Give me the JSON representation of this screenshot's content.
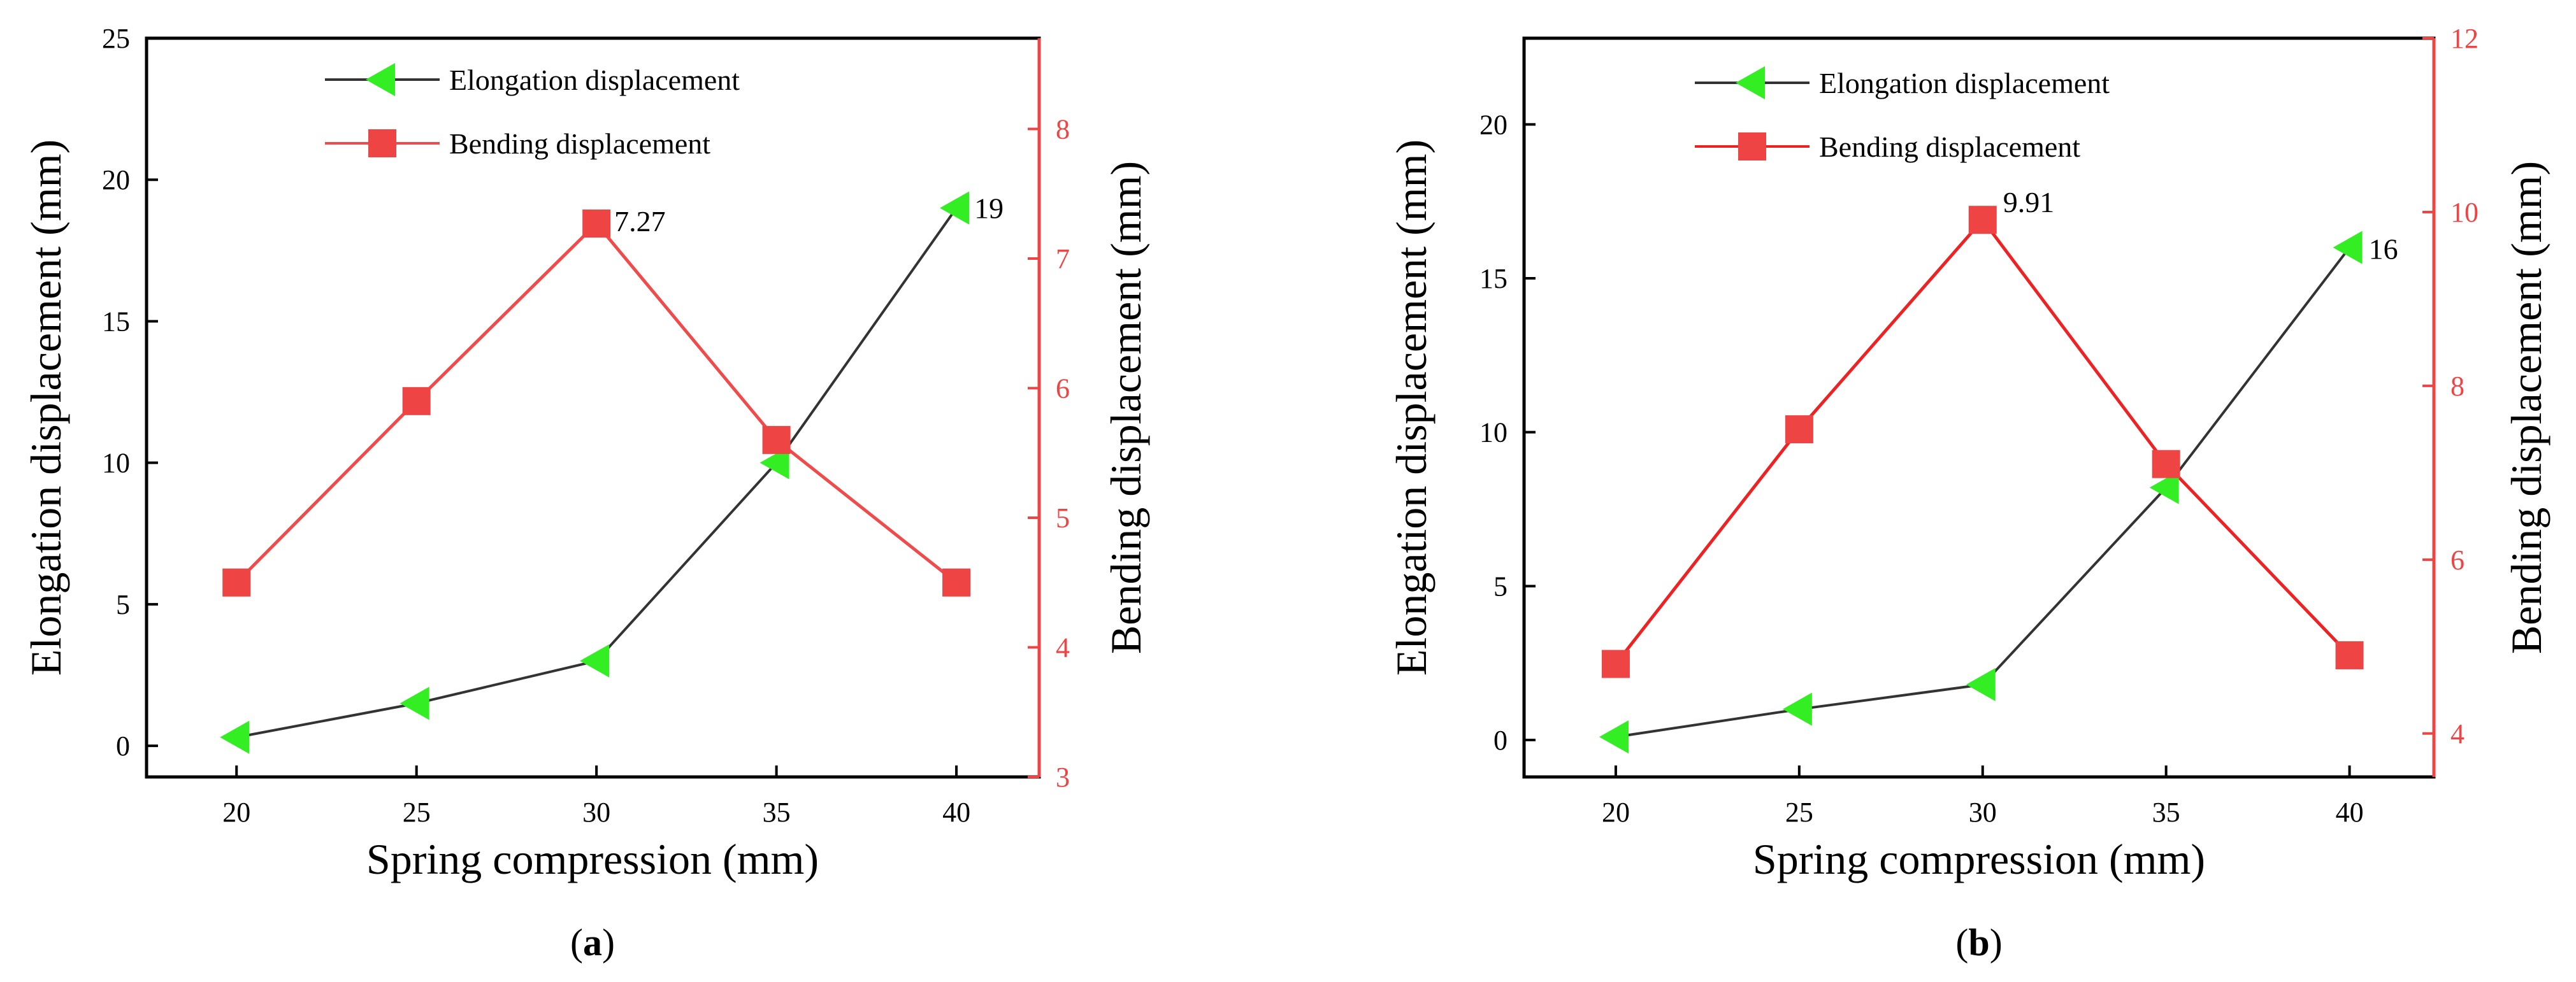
{
  "chart_data": [
    {
      "type": "line",
      "panel_label": "a",
      "xlabel": "Spring compression (mm)",
      "ylabel_left": "Elongation displacement (mm)",
      "ylabel_right": "Bending displacement (mm)",
      "x": [
        20,
        25,
        30,
        35,
        40
      ],
      "xlim": [
        17.5,
        42.3
      ],
      "xticks": [
        20,
        25,
        30,
        35,
        40
      ],
      "ylim_left": [
        -1.1,
        25
      ],
      "yticks_left": [
        0,
        5,
        10,
        15,
        20,
        25
      ],
      "ylim_right": [
        3,
        8.7
      ],
      "yticks_right": [
        3,
        4,
        5,
        6,
        7,
        8
      ],
      "legend_position": "top-center",
      "series": [
        {
          "name": "Elongation displacement",
          "axis": "left",
          "marker": "left-triangle",
          "line_color": "#333333",
          "marker_color": "#33ee22",
          "values": [
            0.3,
            1.5,
            3.0,
            10.0,
            19.0
          ]
        },
        {
          "name": "Bending displacement",
          "axis": "right",
          "marker": "square",
          "line_color": "#f04a4a",
          "marker_color": "#ef4444",
          "values": [
            4.5,
            5.9,
            7.27,
            5.6,
            4.5
          ]
        }
      ],
      "annotations": [
        {
          "text": "7.27",
          "series": 1,
          "point": 2
        },
        {
          "text": "19",
          "series": 0,
          "point": 4
        }
      ]
    },
    {
      "type": "line",
      "panel_label": "b",
      "xlabel": "Spring compression (mm)",
      "ylabel_left": "Elongation displacement (mm)",
      "ylabel_right": "Bending displacement (mm)",
      "x": [
        20,
        25,
        30,
        35,
        40
      ],
      "xlim": [
        17.5,
        42.3
      ],
      "xticks": [
        20,
        25,
        30,
        35,
        40
      ],
      "ylim_left": [
        -1.2,
        22.8
      ],
      "yticks_left": [
        0,
        5,
        10,
        15,
        20
      ],
      "ylim_right": [
        3.5,
        12
      ],
      "yticks_right": [
        4,
        6,
        8,
        10,
        12
      ],
      "legend_position": "top-center",
      "series": [
        {
          "name": "Elongation displacement",
          "axis": "left",
          "marker": "left-triangle",
          "line_color": "#333333",
          "marker_color": "#33ee22",
          "values": [
            0.1,
            1.0,
            1.8,
            8.2,
            16.0
          ]
        },
        {
          "name": "Bending displacement",
          "axis": "right",
          "marker": "square",
          "line_color": "#ee2222",
          "marker_color": "#ef4444",
          "values": [
            4.8,
            7.5,
            9.91,
            7.1,
            4.9
          ]
        }
      ],
      "annotations": [
        {
          "text": "9.91",
          "series": 1,
          "point": 2
        },
        {
          "text": "16",
          "series": 0,
          "point": 4
        }
      ]
    }
  ]
}
